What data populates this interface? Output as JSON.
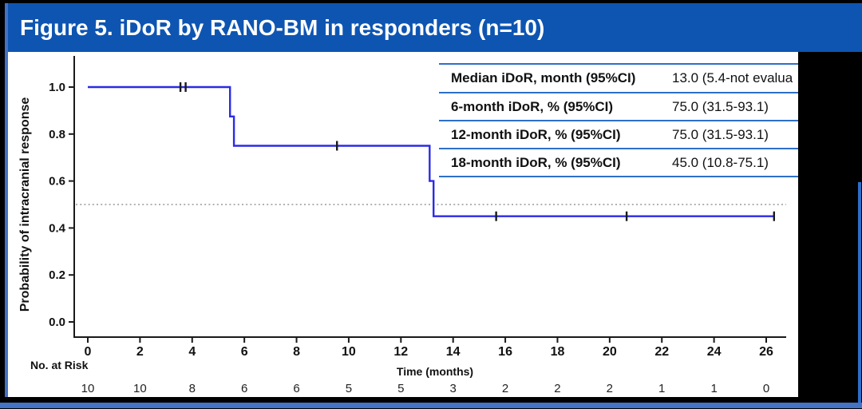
{
  "title": "Figure 5. iDoR by RANO-BM in responders (n=10)",
  "colors": {
    "title_bar_blue": "#0e55b2",
    "slide_border_blue": "#4472c4",
    "table_line_blue": "#2e6fc8",
    "curve_blue": "#2b2be6",
    "axis_black": "#1a1a1a",
    "reference_gray": "#999999",
    "background_black": "#000000",
    "chart_white": "#ffffff"
  },
  "stats_table": {
    "rows": [
      {
        "label": "Median iDoR, month (95%CI)",
        "value": "13.0 (5.4-not evalua"
      },
      {
        "label": "6-month iDoR, % (95%CI)",
        "value": "75.0 (31.5-93.1)"
      },
      {
        "label": "12-month iDoR, % (95%CI)",
        "value": "75.0 (31.5-93.1)"
      },
      {
        "label": "18-month iDoR, % (95%CI)",
        "value": "45.0 (10.8-75.1)"
      }
    ]
  },
  "chart_data": {
    "type": "line",
    "subtype": "kaplan-meier-step",
    "title": "Figure 5. iDoR by RANO-BM in responders (n=10)",
    "xlabel": "Time (months)",
    "ylabel": "Probability of intracranial response",
    "xlim": [
      0,
      26
    ],
    "ylim": [
      0.0,
      1.0
    ],
    "xticks": [
      0,
      2,
      4,
      6,
      8,
      10,
      12,
      14,
      16,
      18,
      20,
      22,
      24,
      26
    ],
    "yticks": [
      0.0,
      0.2,
      0.4,
      0.6,
      0.8,
      1.0
    ],
    "grid": false,
    "legend": "none",
    "reference_line_y": 0.5,
    "series": [
      {
        "name": "iDoR by RANO-BM (responders)",
        "color": "#2b2be6",
        "steps": [
          [
            0,
            1.0
          ],
          [
            5.45,
            1.0
          ],
          [
            5.45,
            0.875
          ],
          [
            5.6,
            0.875
          ],
          [
            5.6,
            0.75
          ],
          [
            13.1,
            0.75
          ],
          [
            13.1,
            0.6
          ],
          [
            13.25,
            0.6
          ],
          [
            13.25,
            0.45
          ],
          [
            26.3,
            0.45
          ]
        ],
        "censor_marks": [
          [
            3.55,
            1.0
          ],
          [
            3.75,
            1.0
          ],
          [
            9.55,
            0.75
          ],
          [
            15.65,
            0.45
          ],
          [
            20.65,
            0.45
          ],
          [
            26.3,
            0.45
          ]
        ]
      }
    ],
    "at_risk": {
      "label": "No. at Risk",
      "times": [
        0,
        2,
        4,
        6,
        8,
        10,
        12,
        14,
        16,
        18,
        20,
        22,
        24,
        26
      ],
      "counts": [
        10,
        10,
        8,
        6,
        6,
        5,
        5,
        3,
        2,
        2,
        2,
        1,
        1,
        0
      ]
    }
  }
}
